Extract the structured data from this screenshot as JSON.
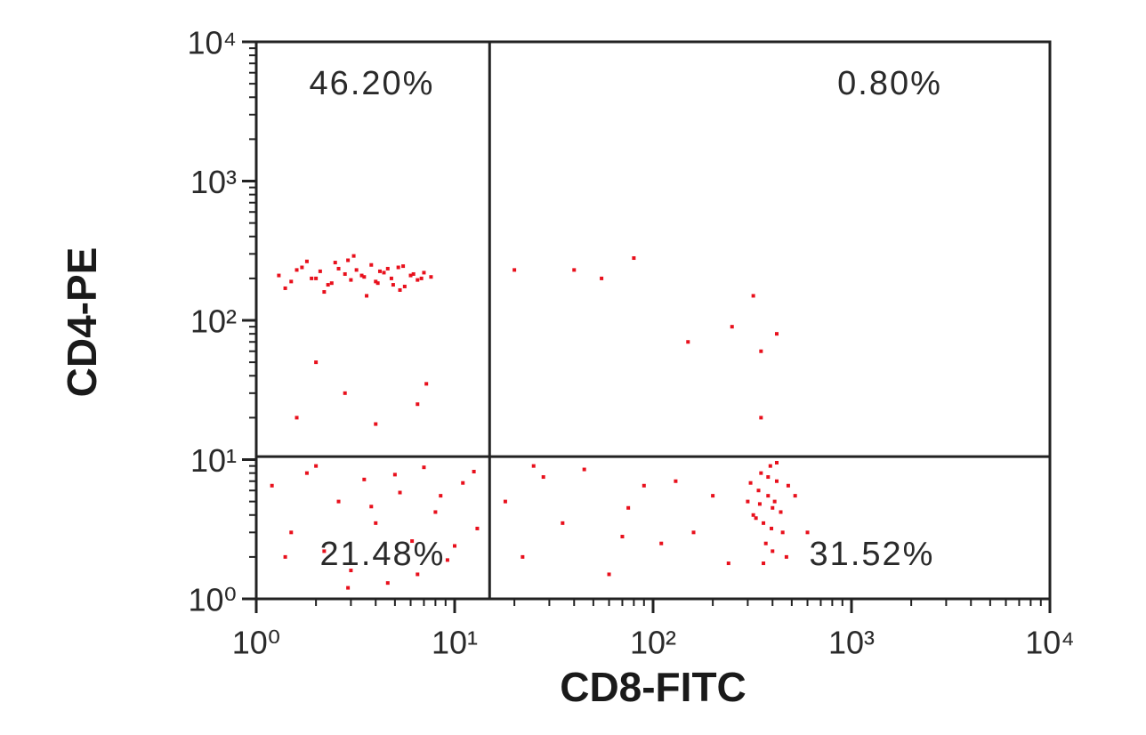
{
  "chart_data": {
    "type": "scatter",
    "xlabel": "CD8-FITC",
    "ylabel": "CD4-PE",
    "xscale": "log",
    "yscale": "log",
    "xlim": [
      1,
      10000
    ],
    "ylim": [
      1,
      10000
    ],
    "xticks": [
      {
        "value": 1,
        "label": "10⁰"
      },
      {
        "value": 10,
        "label": "10¹"
      },
      {
        "value": 100,
        "label": "10²"
      },
      {
        "value": 1000,
        "label": "10³"
      },
      {
        "value": 10000,
        "label": "10⁴"
      }
    ],
    "yticks": [
      {
        "value": 1,
        "label": "10⁰"
      },
      {
        "value": 10,
        "label": "10¹"
      },
      {
        "value": 100,
        "label": "10²"
      },
      {
        "value": 1000,
        "label": "10³"
      },
      {
        "value": 10000,
        "label": "10⁴"
      }
    ],
    "quadrant_x": 15,
    "quadrant_y": 10.5,
    "annotations": [
      "46.20%",
      "0.80%",
      "21.48%",
      "31.52%"
    ],
    "color": "#e8101c",
    "x": [
      1.3,
      1.5,
      1.7,
      1.9,
      2.1,
      2.3,
      2.5,
      2.8,
      3.0,
      3.2,
      3.5,
      3.8,
      4.1,
      4.4,
      4.8,
      5.2,
      5.6,
      6.0,
      6.5,
      7.0,
      7.6,
      1.4,
      1.8,
      2.2,
      2.6,
      3.1,
      3.6,
      4.2,
      4.9,
      5.5,
      6.2,
      1.6,
      2.0,
      2.4,
      2.9,
      3.4,
      4.0,
      4.6,
      5.3,
      6.8,
      2.0,
      2.8,
      4.0,
      6.5,
      7.2,
      1.6,
      20,
      40,
      55,
      80,
      150,
      250,
      320,
      350,
      420,
      350,
      1.2,
      1.5,
      1.8,
      2.2,
      2.6,
      3.0,
      3.5,
      4.0,
      4.6,
      5.3,
      6.1,
      7.0,
      8.0,
      9.2,
      11,
      13,
      1.4,
      2.0,
      2.9,
      3.8,
      5.0,
      6.5,
      8.5,
      10,
      12.5,
      18,
      22,
      28,
      35,
      45,
      60,
      75,
      90,
      110,
      130,
      160,
      200,
      240,
      25,
      70,
      300,
      320,
      340,
      360,
      380,
      400,
      420,
      450,
      480,
      350,
      370,
      390,
      410,
      330,
      310,
      440,
      360,
      380,
      400,
      520,
      600,
      420,
      345,
      395,
      470
    ],
    "values": [
      210,
      190,
      240,
      200,
      225,
      180,
      260,
      215,
      195,
      230,
      205,
      250,
      185,
      220,
      200,
      240,
      175,
      210,
      195,
      220,
      205,
      170,
      265,
      160,
      235,
      290,
      150,
      225,
      180,
      245,
      215,
      230,
      200,
      185,
      270,
      210,
      190,
      235,
      165,
      200,
      50,
      30,
      18,
      25,
      35,
      20,
      230,
      230,
      200,
      280,
      70,
      90,
      150,
      60,
      80,
      20,
      6.5,
      3.0,
      8.0,
      2.2,
      5.0,
      1.6,
      7.2,
      3.5,
      1.3,
      5.8,
      2.6,
      8.8,
      4.2,
      1.9,
      6.8,
      3.2,
      2.0,
      9.0,
      1.2,
      4.6,
      7.8,
      1.5,
      5.5,
      2.4,
      8.2,
      5.0,
      2.0,
      7.5,
      3.5,
      8.5,
      1.5,
      4.5,
      6.5,
      2.5,
      7.0,
      3.0,
      5.5,
      1.8,
      9.0,
      2.8,
      5.0,
      4.0,
      6.0,
      3.5,
      5.5,
      4.5,
      7.0,
      3.0,
      6.5,
      8.0,
      2.5,
      9.0,
      5.0,
      3.8,
      6.8,
      4.2,
      1.8,
      7.5,
      2.2,
      5.5,
      3.0,
      9.5,
      4.8,
      3.2,
      2.0
    ]
  }
}
